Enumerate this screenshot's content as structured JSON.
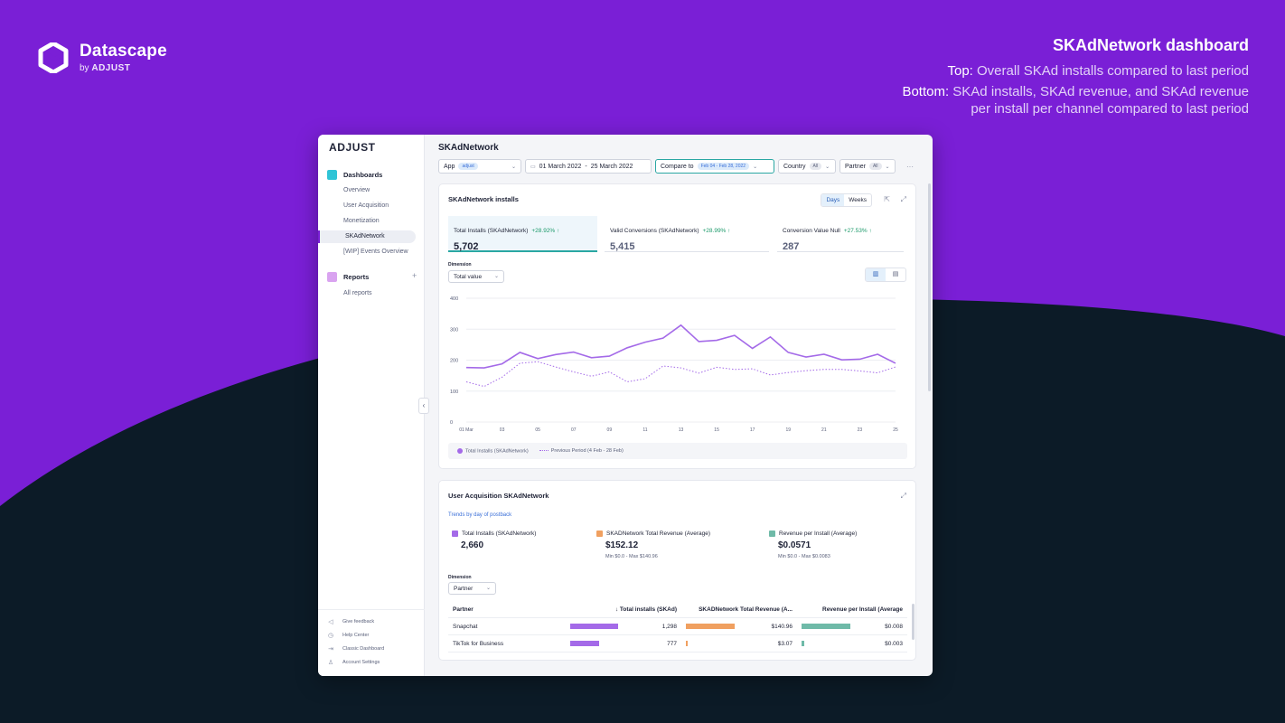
{
  "brand": {
    "name": "Datascape",
    "by": "by",
    "company": "ADJUST"
  },
  "headline": {
    "title": "SKAdNetwork dashboard",
    "top_label": "Top:",
    "top_text": "Overall SKAd installs compared to last period",
    "bottom_label": "Bottom:",
    "bottom_text_1": "SKAd installs, SKAd revenue, and SKAd revenue",
    "bottom_text_2": "per install per channel compared to last period"
  },
  "sidebar": {
    "logo": "ADJUST",
    "dashboards_label": "Dashboards",
    "dashboard_items": [
      "Overview",
      "User Acquisition",
      "Monetization",
      "SKAdNetwork",
      "[WIP] Events Overview"
    ],
    "active_item": "SKAdNetwork",
    "reports_label": "Reports",
    "report_items": [
      "All reports"
    ],
    "footer_items": [
      {
        "label": "Give feedback",
        "icon": "feedback-icon",
        "glyph": "◁"
      },
      {
        "label": "Help Center",
        "icon": "help-icon",
        "glyph": "◷"
      },
      {
        "label": "Classic Dashboard",
        "icon": "exit-icon",
        "glyph": "⇥"
      },
      {
        "label": "Account Settings",
        "icon": "user-icon",
        "glyph": "♙"
      }
    ]
  },
  "page": {
    "title": "SKAdNetwork"
  },
  "filters": {
    "app_label": "App",
    "app_value": "adjust",
    "date_start": "01 March 2022",
    "date_sep": "-",
    "date_end": "25 March 2022",
    "compare_label": "Compare to",
    "compare_value": "Feb 04 - Feb 28, 2022",
    "country_label": "Country",
    "country_value": "All",
    "partner_label": "Partner",
    "partner_value": "All",
    "more": "···"
  },
  "installs_card": {
    "title": "SKAdNetwork installs",
    "toggle_days": "Days",
    "toggle_weeks": "Weeks",
    "metrics": [
      {
        "label": "Total Installs (SKAdNetwork)",
        "delta": "+28.92% ↑",
        "value": "5,702"
      },
      {
        "label": "Valid Conversions (SKAdNetwork)",
        "delta": "+28.99% ↑",
        "value": "5,415"
      },
      {
        "label": "Conversion Value Null",
        "delta": "+27.53% ↑",
        "value": "287"
      }
    ],
    "dimension_label": "Dimension",
    "dimension_value": "Total value",
    "legend_current": "Total Installs (SKAdNetwork)",
    "legend_previous": "Previous Period (4 Feb - 28 Feb)"
  },
  "chart_data": {
    "type": "line",
    "x": [
      "01 Mar",
      "02",
      "03",
      "04",
      "05",
      "06",
      "07",
      "08",
      "09",
      "10",
      "11",
      "12",
      "13",
      "14",
      "15",
      "16",
      "17",
      "18",
      "19",
      "20",
      "21",
      "22",
      "23",
      "24",
      "25"
    ],
    "x_tick_labels": [
      "01 Mar",
      "03",
      "05",
      "07",
      "09",
      "11",
      "13",
      "15",
      "17",
      "19",
      "21",
      "23",
      "25"
    ],
    "series": [
      {
        "name": "Total Installs (SKAdNetwork)",
        "values": [
          176,
          175,
          188,
          225,
          205,
          218,
          226,
          208,
          213,
          240,
          258,
          271,
          313,
          260,
          264,
          280,
          238,
          275,
          225,
          210,
          219,
          201,
          203,
          219,
          190
        ]
      },
      {
        "name": "Previous Period (4 Feb - 28 Feb)",
        "values": [
          130,
          115,
          145,
          190,
          195,
          178,
          162,
          148,
          162,
          130,
          140,
          181,
          175,
          158,
          177,
          170,
          172,
          152,
          160,
          166,
          170,
          170,
          165,
          159,
          178
        ]
      }
    ],
    "ylim": [
      0,
      400
    ],
    "y_ticks": [
      0,
      100,
      200,
      300,
      400
    ],
    "grid": true,
    "colors": {
      "current": "#a46ae8",
      "previous": "#a46ae8"
    }
  },
  "ua_card": {
    "title": "User Acquisition SKAdNetwork",
    "subtitle": "Trends by day of postback",
    "kpis": [
      {
        "label": "Total Installs (SKAdNetwork)",
        "value": "2,660",
        "range": "",
        "color": "#a46ae8"
      },
      {
        "label": "SKADNetwork Total Revenue (Average)",
        "value": "$152.12",
        "range": "Min $0.0 - Max $140.96",
        "color": "#f0a060"
      },
      {
        "label": "Revenue per Install (Average)",
        "value": "$0.0571",
        "range": "Min $0.0 - Max $0.0083",
        "color": "#6fbaa8"
      }
    ],
    "dimension_label": "Dimension",
    "dimension_value": "Partner",
    "table": {
      "headers": [
        "Partner",
        "↓ Total installs (SKAd)",
        "SKADNetwork Total Revenue (A...",
        "Revenue per Install (Average"
      ],
      "rows": [
        {
          "partner": "Snapchat",
          "installs": "1,298",
          "installs_frac": 0.88,
          "revenue": "$140.96",
          "revenue_frac": 0.9,
          "rpi": "$0.008",
          "rpi_frac": 0.9
        },
        {
          "partner": "TikTok for Business",
          "installs": "777",
          "installs_frac": 0.53,
          "revenue": "$3.07",
          "revenue_frac": 0.03,
          "rpi": "$0.003",
          "rpi_frac": 0.05
        }
      ]
    }
  }
}
